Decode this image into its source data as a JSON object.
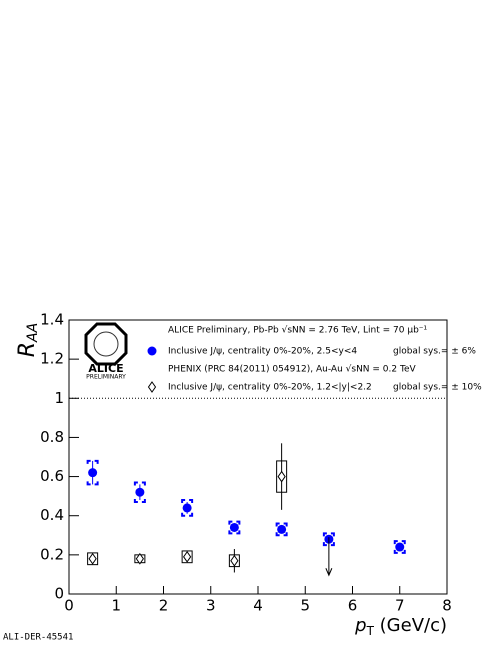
{
  "chart_data": {
    "type": "errorbar",
    "y_label": {
      "main": "R",
      "sub": "AA"
    },
    "x_label": {
      "main": "p",
      "sub": "T",
      "unit": " (GeV/c)"
    },
    "xlim": [
      0,
      8
    ],
    "xticks": [
      0,
      1,
      2,
      3,
      4,
      5,
      6,
      7,
      8
    ],
    "ylim": [
      0,
      1.4
    ],
    "yticks": [
      0,
      0.2,
      0.4,
      0.6,
      0.8,
      1,
      1.2,
      1.4
    ],
    "reference_line": 1,
    "legend_header": "ALICE Preliminary, Pb-Pb √sNN = 2.76 TeV, Lint = 70 μb⁻¹",
    "series": [
      {
        "name": "Inclusive J/ψ, centrality 0%-20%, 2.5<y<4",
        "global_sys": "global sys.= ± 6%",
        "color": "#0000ff",
        "marker": "circle",
        "x": [
          0.5,
          1.5,
          2.5,
          3.5,
          4.5,
          5.5,
          7
        ],
        "values": [
          0.62,
          0.52,
          0.44,
          0.34,
          0.33,
          0.28,
          0.24
        ],
        "stat_err": [
          0.06,
          0.04,
          0.03,
          0.02,
          0.02,
          0.02,
          0.02
        ],
        "sys_err": [
          0.06,
          0.05,
          0.04,
          0.03,
          0.03,
          0.03,
          0.03
        ]
      },
      {
        "header": "PHENIX (PRC 84(2011) 054912), Au-Au √sNN = 0.2 TeV",
        "name": "Inclusive J/ψ, centrality 0%-20%, 1.2<|y|<2.2",
        "global_sys": "global sys.= ± 10%",
        "color": "#000000",
        "marker": "diamond",
        "x": [
          0.5,
          1.5,
          2.5,
          3.5,
          4.5
        ],
        "values": [
          0.18,
          0.18,
          0.19,
          0.17,
          0.6
        ],
        "stat_err": [
          0.01,
          0.01,
          0.02,
          0.06,
          0.17
        ],
        "sys_err": [
          0.03,
          0.02,
          0.03,
          0.03,
          0.08
        ],
        "upper_limit": {
          "x": 5.5,
          "value": 0.29
        }
      }
    ],
    "logo": {
      "name": "ALICE",
      "tag": "PRELIMINARY"
    },
    "watermark": "ALI-DER-45541"
  }
}
